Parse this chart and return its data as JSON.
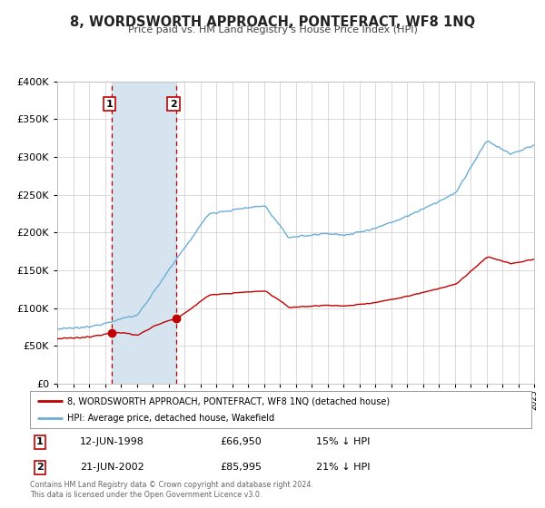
{
  "title": "8, WORDSWORTH APPROACH, PONTEFRACT, WF8 1NQ",
  "subtitle": "Price paid vs. HM Land Registry's House Price Index (HPI)",
  "legend_line1": "8, WORDSWORTH APPROACH, PONTEFRACT, WF8 1NQ (detached house)",
  "legend_line2": "HPI: Average price, detached house, Wakefield",
  "transaction1_date": "12-JUN-1998",
  "transaction1_price": "£66,950",
  "transaction1_hpi": "15% ↓ HPI",
  "transaction2_date": "21-JUN-2002",
  "transaction2_price": "£85,995",
  "transaction2_hpi": "21% ↓ HPI",
  "footer": "Contains HM Land Registry data © Crown copyright and database right 2024.\nThis data is licensed under the Open Government Licence v3.0.",
  "hpi_color": "#6baed6",
  "price_color": "#c00000",
  "shading_color": "#d6e4f0",
  "background_color": "#ffffff",
  "grid_color": "#cccccc",
  "ylim": [
    0,
    400000
  ],
  "yticks": [
    0,
    50000,
    100000,
    150000,
    200000,
    250000,
    300000,
    350000,
    400000
  ],
  "transaction1_year": 1998.45,
  "transaction2_year": 2002.47,
  "transaction1_price_val": 66950,
  "transaction2_price_val": 85995
}
